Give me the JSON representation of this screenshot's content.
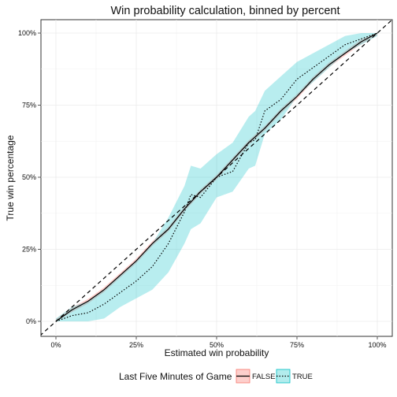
{
  "chart_data": {
    "type": "line",
    "title": "Win probability calculation, binned by percent",
    "xlabel": "Estimated win probability",
    "ylabel": "True win percentage",
    "xlim": [
      0,
      1
    ],
    "ylim": [
      0,
      1
    ],
    "x_ticks": [
      {
        "value": 0,
        "label": "0%"
      },
      {
        "value": 0.25,
        "label": "25%"
      },
      {
        "value": 0.5,
        "label": "50%"
      },
      {
        "value": 0.75,
        "label": "75%"
      },
      {
        "value": 1,
        "label": "100%"
      }
    ],
    "y_ticks": [
      {
        "value": 0,
        "label": "0%"
      },
      {
        "value": 0.25,
        "label": "25%"
      },
      {
        "value": 0.5,
        "label": "50%"
      },
      {
        "value": 0.75,
        "label": "75%"
      },
      {
        "value": 1,
        "label": "100%"
      }
    ],
    "grid": true,
    "reference_line": {
      "slope": 1,
      "intercept": 0,
      "style": "dashed",
      "color": "#000000"
    },
    "legend": {
      "title": "Last Five Minutes of Game",
      "position": "bottom"
    },
    "series": [
      {
        "name": "FALSE",
        "line_style": "solid",
        "line_color": "#000000",
        "band_color": "#F8766D",
        "x": [
          0,
          0.05,
          0.1,
          0.15,
          0.2,
          0.25,
          0.3,
          0.35,
          0.4,
          0.45,
          0.5,
          0.55,
          0.6,
          0.65,
          0.7,
          0.75,
          0.8,
          0.85,
          0.9,
          0.95,
          1
        ],
        "y": [
          0.0,
          0.04,
          0.07,
          0.11,
          0.16,
          0.21,
          0.27,
          0.32,
          0.39,
          0.45,
          0.5,
          0.56,
          0.62,
          0.67,
          0.73,
          0.78,
          0.84,
          0.89,
          0.93,
          0.97,
          1.0
        ],
        "band_halfwidth": 0.008
      },
      {
        "name": "TRUE",
        "line_style": "dotted",
        "line_color": "#000000",
        "band_color": "#00BFC4",
        "x": [
          0,
          0.05,
          0.1,
          0.15,
          0.2,
          0.25,
          0.3,
          0.35,
          0.4,
          0.42,
          0.45,
          0.5,
          0.55,
          0.6,
          0.62,
          0.65,
          0.7,
          0.75,
          0.8,
          0.85,
          0.9,
          0.95,
          1
        ],
        "y": [
          0.0,
          0.02,
          0.03,
          0.06,
          0.1,
          0.14,
          0.19,
          0.27,
          0.38,
          0.44,
          0.43,
          0.5,
          0.52,
          0.62,
          0.63,
          0.73,
          0.77,
          0.84,
          0.88,
          0.92,
          0.96,
          0.98,
          1.0
        ],
        "band_lower": [
          0.0,
          0.0,
          0.0,
          0.01,
          0.05,
          0.08,
          0.11,
          0.17,
          0.27,
          0.32,
          0.34,
          0.43,
          0.45,
          0.53,
          0.54,
          0.65,
          0.7,
          0.78,
          0.83,
          0.88,
          0.93,
          0.96,
          0.99
        ],
        "band_upper": [
          0.01,
          0.05,
          0.07,
          0.11,
          0.16,
          0.21,
          0.27,
          0.36,
          0.47,
          0.54,
          0.53,
          0.58,
          0.62,
          0.71,
          0.73,
          0.8,
          0.85,
          0.9,
          0.93,
          0.96,
          0.99,
          1.0,
          1.0
        ]
      }
    ]
  }
}
